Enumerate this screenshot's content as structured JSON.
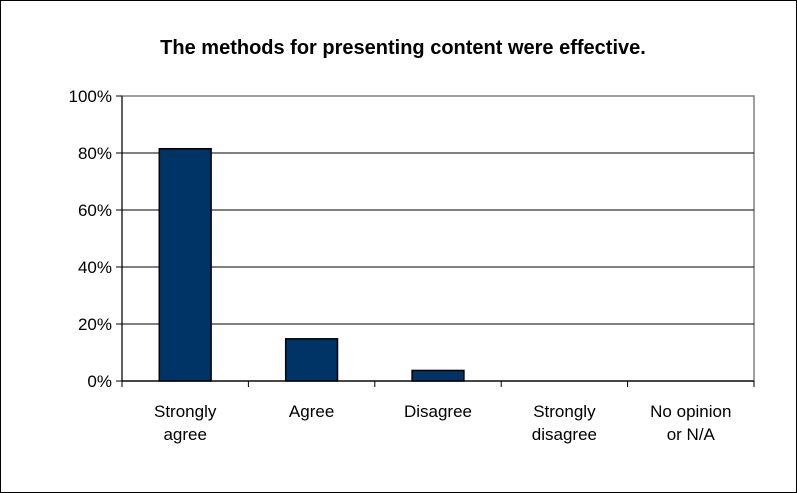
{
  "chart_data": {
    "type": "bar",
    "title": "The methods for presenting content were effective.",
    "xlabel": "",
    "ylabel": "",
    "categories": [
      [
        "Strongly",
        "agree"
      ],
      [
        "Agree"
      ],
      [
        "Disagree"
      ],
      [
        "Strongly",
        "disagree"
      ],
      [
        "No opinion",
        "or N/A"
      ]
    ],
    "values": [
      81.5,
      14.8,
      3.7,
      0,
      0
    ],
    "ylim": [
      0,
      100
    ],
    "yticks": [
      0,
      20,
      40,
      60,
      80,
      100
    ],
    "ytick_labels": [
      "0%",
      "20%",
      "40%",
      "60%",
      "80%",
      "100%"
    ],
    "grid": true,
    "legend": "none",
    "colors": {
      "bar": "#003366",
      "bar_stroke": "#000000",
      "plot_border": "#808080",
      "gridline": "#000000"
    }
  }
}
